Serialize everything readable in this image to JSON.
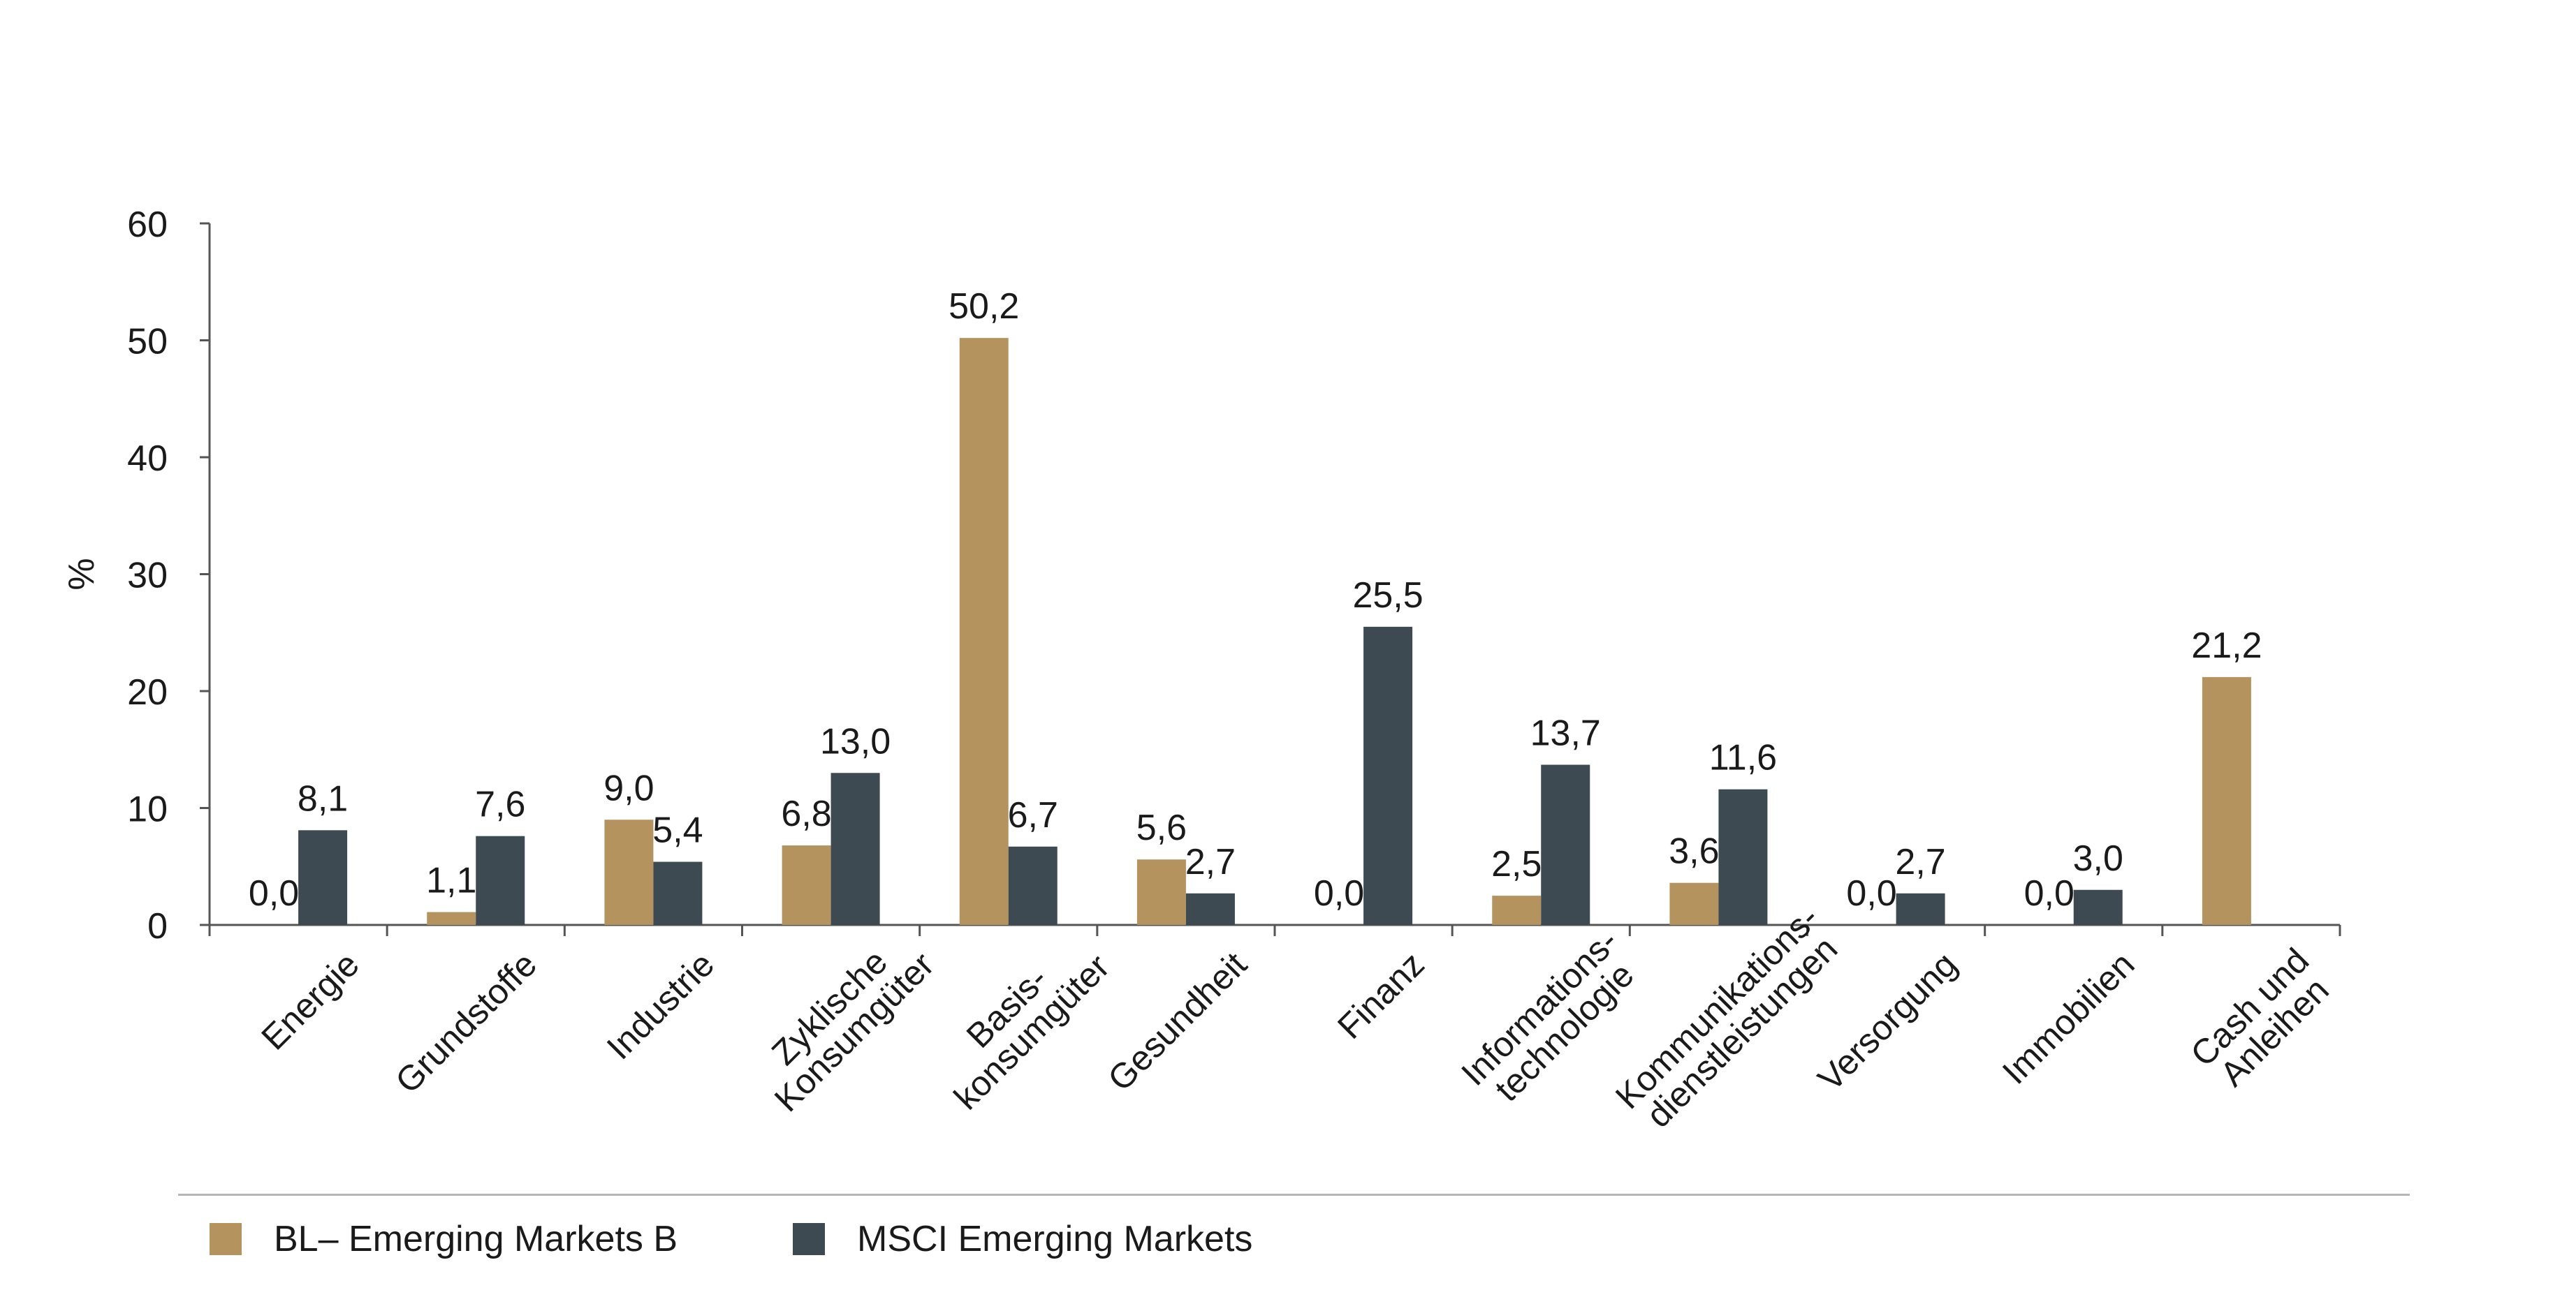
{
  "chart_data": {
    "type": "bar",
    "ylabel": "%",
    "ylim": [
      0,
      60
    ],
    "yticks": [
      0,
      10,
      20,
      30,
      40,
      50,
      60
    ],
    "grid": false,
    "legend_position": "bottom-left",
    "categories": [
      [
        "Energie"
      ],
      [
        "Grundstoffe"
      ],
      [
        "Industrie"
      ],
      [
        "Zyklische",
        "Konsumgüter"
      ],
      [
        "Basis-",
        "konsumgüter"
      ],
      [
        "Gesundheit"
      ],
      [
        "Finanz"
      ],
      [
        "Informations-",
        "technologie"
      ],
      [
        "Kommunikations-",
        "dienstleistungen"
      ],
      [
        "Versorgung"
      ],
      [
        "Immobilien"
      ],
      [
        "Cash und",
        "Anleihen"
      ]
    ],
    "series": [
      {
        "name": "BL– Emerging Markets B",
        "color": "#b5935f",
        "values": [
          0.0,
          1.1,
          9.0,
          6.8,
          50.2,
          5.6,
          0.0,
          2.5,
          3.6,
          0.0,
          0.0,
          21.2
        ],
        "labels": [
          "0,0",
          "1,1",
          "9,0",
          "6,8",
          "50,2",
          "5,6",
          "0,0",
          "2,5",
          "3,6",
          "0,0",
          "0,0",
          "21,2"
        ]
      },
      {
        "name": "MSCI Emerging Markets",
        "color": "#3d4a52",
        "values": [
          8.1,
          7.6,
          5.4,
          13.0,
          6.7,
          2.7,
          25.5,
          13.7,
          11.6,
          2.7,
          3.0,
          null
        ],
        "labels": [
          "8,1",
          "7,6",
          "5,4",
          "13,0",
          "6,7",
          "2,7",
          "25,5",
          "13,7",
          "11,6",
          "2,7",
          "3,0",
          ""
        ]
      }
    ]
  }
}
